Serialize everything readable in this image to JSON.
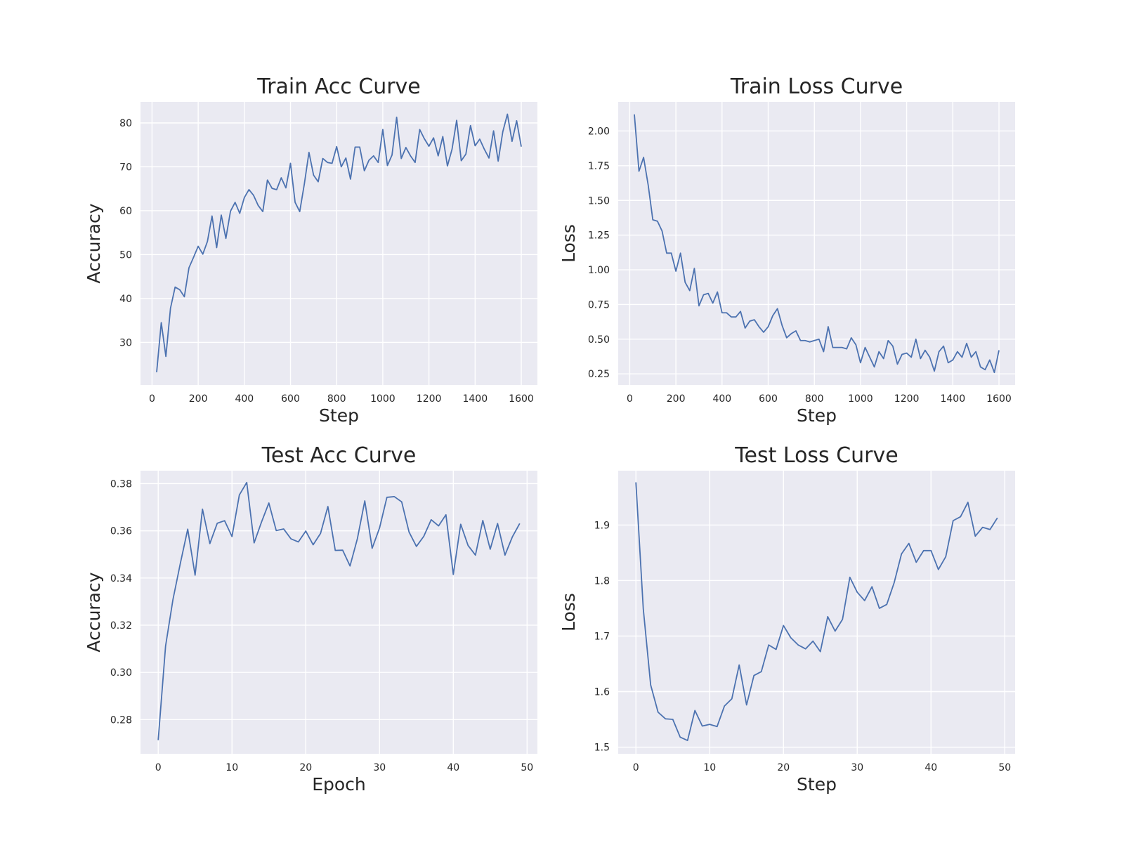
{
  "chart_data": [
    {
      "type": "line",
      "title": "Train Acc Curve",
      "xlabel": "Step",
      "ylabel": "Accuracy",
      "xlim": [
        -50,
        1670
      ],
      "ylim": [
        20.3,
        84.8
      ],
      "xticks": [
        0,
        200,
        400,
        600,
        800,
        1000,
        1200,
        1400,
        1600
      ],
      "yticks": [
        30,
        40,
        50,
        60,
        70,
        80
      ],
      "grid": true,
      "series": [
        {
          "x": [
            20,
            40,
            60,
            80,
            100,
            120,
            140,
            160,
            180,
            200,
            220,
            240,
            260,
            280,
            300,
            320,
            340,
            360,
            380,
            400,
            420,
            440,
            460,
            480,
            500,
            520,
            540,
            560,
            580,
            600,
            620,
            640,
            660,
            680,
            700,
            720,
            740,
            760,
            780,
            800,
            820,
            840,
            860,
            880,
            900,
            920,
            940,
            960,
            980,
            1000,
            1020,
            1040,
            1060,
            1080,
            1100,
            1120,
            1140,
            1160,
            1180,
            1200,
            1220,
            1240,
            1260,
            1280,
            1300,
            1320,
            1340,
            1360,
            1380,
            1400,
            1420,
            1440,
            1460,
            1480,
            1500,
            1520,
            1540,
            1560,
            1580,
            1600
          ],
          "y": [
            23.2,
            34.5,
            26.8,
            37.8,
            42.6,
            42.0,
            40.4,
            47.0,
            49.4,
            51.9,
            50.1,
            53.0,
            58.8,
            51.6,
            59.0,
            53.7,
            59.9,
            61.9,
            59.4,
            63.0,
            64.8,
            63.5,
            61.2,
            59.8,
            67.0,
            65.1,
            64.8,
            67.5,
            65.2,
            70.8,
            61.9,
            59.8,
            66.1,
            73.3,
            68.1,
            66.6,
            71.9,
            71.0,
            70.8,
            74.6,
            70.0,
            72.0,
            67.2,
            74.5,
            74.5,
            69.1,
            71.5,
            72.5,
            71.0,
            78.5,
            70.3,
            72.7,
            81.3,
            71.9,
            74.4,
            72.5,
            71.0,
            78.5,
            76.4,
            74.7,
            76.6,
            72.5,
            76.9,
            70.2,
            74.0,
            80.6,
            71.4,
            72.9,
            79.4,
            74.8,
            76.3,
            74.0,
            72.0,
            78.2,
            71.3,
            78.0,
            82.0,
            75.8,
            80.5,
            74.6
          ]
        }
      ]
    },
    {
      "type": "line",
      "title": "Train Loss Curve",
      "xlabel": "Step",
      "ylabel": "Loss",
      "xlim": [
        -50,
        1670
      ],
      "ylim": [
        0.17,
        2.21
      ],
      "xticks": [
        0,
        200,
        400,
        600,
        800,
        1000,
        1200,
        1400,
        1600
      ],
      "yticks": [
        0.25,
        0.5,
        0.75,
        1.0,
        1.25,
        1.5,
        1.75,
        2.0
      ],
      "ytick_labels": [
        "0.25",
        "0.50",
        "0.75",
        "1.00",
        "1.25",
        "1.50",
        "1.75",
        "2.00"
      ],
      "grid": true,
      "series": [
        {
          "x": [
            20,
            40,
            60,
            80,
            100,
            120,
            140,
            160,
            180,
            200,
            220,
            240,
            260,
            280,
            300,
            320,
            340,
            360,
            380,
            400,
            420,
            440,
            460,
            480,
            500,
            520,
            540,
            560,
            580,
            600,
            620,
            640,
            660,
            680,
            700,
            720,
            740,
            760,
            780,
            800,
            820,
            840,
            860,
            880,
            900,
            920,
            940,
            960,
            980,
            1000,
            1020,
            1040,
            1060,
            1080,
            1100,
            1120,
            1140,
            1160,
            1180,
            1200,
            1220,
            1240,
            1260,
            1280,
            1300,
            1320,
            1340,
            1360,
            1380,
            1400,
            1420,
            1440,
            1460,
            1480,
            1500,
            1520,
            1540,
            1560,
            1580,
            1600
          ],
          "y": [
            2.12,
            1.71,
            1.81,
            1.61,
            1.36,
            1.35,
            1.28,
            1.12,
            1.12,
            0.99,
            1.12,
            0.91,
            0.85,
            1.01,
            0.74,
            0.82,
            0.83,
            0.76,
            0.84,
            0.69,
            0.69,
            0.66,
            0.66,
            0.7,
            0.58,
            0.63,
            0.64,
            0.59,
            0.55,
            0.59,
            0.67,
            0.72,
            0.6,
            0.51,
            0.54,
            0.56,
            0.49,
            0.49,
            0.48,
            0.49,
            0.5,
            0.41,
            0.59,
            0.44,
            0.44,
            0.44,
            0.43,
            0.51,
            0.46,
            0.33,
            0.44,
            0.37,
            0.3,
            0.41,
            0.36,
            0.49,
            0.45,
            0.32,
            0.39,
            0.4,
            0.37,
            0.5,
            0.36,
            0.42,
            0.37,
            0.27,
            0.41,
            0.45,
            0.33,
            0.35,
            0.41,
            0.37,
            0.47,
            0.37,
            0.41,
            0.3,
            0.28,
            0.35,
            0.26,
            0.42
          ]
        }
      ]
    },
    {
      "type": "line",
      "title": "Test Acc Curve",
      "xlabel": "Epoch",
      "ylabel": "Accuracy",
      "xlim": [
        -2.4,
        51.4
      ],
      "ylim": [
        0.2655,
        0.3855
      ],
      "xticks": [
        0,
        10,
        20,
        30,
        40,
        50
      ],
      "yticks": [
        0.28,
        0.3,
        0.32,
        0.34,
        0.36,
        0.38
      ],
      "ytick_labels": [
        "0.28",
        "0.30",
        "0.32",
        "0.34",
        "0.36",
        "0.38"
      ],
      "grid": true,
      "series": [
        {
          "x": [
            0,
            1,
            2,
            3,
            4,
            5,
            6,
            7,
            8,
            9,
            10,
            11,
            12,
            13,
            14,
            15,
            16,
            17,
            18,
            19,
            20,
            21,
            22,
            23,
            24,
            25,
            26,
            27,
            28,
            29,
            30,
            31,
            32,
            33,
            34,
            35,
            36,
            37,
            38,
            39,
            40,
            41,
            42,
            43,
            44,
            45,
            46,
            47,
            48,
            49
          ],
          "y": [
            0.2713,
            0.3112,
            0.3309,
            0.3462,
            0.3607,
            0.3412,
            0.3692,
            0.3546,
            0.3632,
            0.3643,
            0.3576,
            0.3752,
            0.3805,
            0.3549,
            0.3637,
            0.3718,
            0.3601,
            0.3608,
            0.3566,
            0.3553,
            0.3599,
            0.3541,
            0.3589,
            0.3703,
            0.3517,
            0.3518,
            0.3451,
            0.3567,
            0.3727,
            0.3526,
            0.3612,
            0.3742,
            0.3745,
            0.3723,
            0.3595,
            0.3534,
            0.3577,
            0.3647,
            0.3621,
            0.3668,
            0.3415,
            0.3628,
            0.3538,
            0.3497,
            0.3644,
            0.3522,
            0.3631,
            0.3497,
            0.3574,
            0.3631
          ]
        }
      ]
    },
    {
      "type": "line",
      "title": "Test Loss Curve",
      "xlabel": "Step",
      "ylabel": "Loss",
      "xlim": [
        -2.4,
        51.4
      ],
      "ylim": [
        1.488,
        1.998
      ],
      "xticks": [
        0,
        10,
        20,
        30,
        40,
        50
      ],
      "yticks": [
        1.5,
        1.6,
        1.7,
        1.8,
        1.9
      ],
      "ytick_labels": [
        "1.5",
        "1.6",
        "1.7",
        "1.8",
        "1.9"
      ],
      "grid": true,
      "series": [
        {
          "x": [
            0,
            1,
            2,
            3,
            4,
            5,
            6,
            7,
            8,
            9,
            10,
            11,
            12,
            13,
            14,
            15,
            16,
            17,
            18,
            19,
            20,
            21,
            22,
            23,
            24,
            25,
            26,
            27,
            28,
            29,
            30,
            31,
            32,
            33,
            34,
            35,
            36,
            37,
            38,
            39,
            40,
            41,
            42,
            43,
            44,
            45,
            46,
            47,
            48,
            49
          ],
          "y": [
            1.977,
            1.749,
            1.612,
            1.563,
            1.551,
            1.55,
            1.518,
            1.512,
            1.566,
            1.538,
            1.541,
            1.537,
            1.574,
            1.587,
            1.648,
            1.576,
            1.629,
            1.636,
            1.684,
            1.676,
            1.719,
            1.697,
            1.684,
            1.677,
            1.691,
            1.672,
            1.735,
            1.709,
            1.73,
            1.806,
            1.779,
            1.764,
            1.789,
            1.75,
            1.757,
            1.796,
            1.848,
            1.867,
            1.833,
            1.854,
            1.854,
            1.82,
            1.843,
            1.908,
            1.915,
            1.941,
            1.88,
            1.896,
            1.892,
            1.913
          ]
        }
      ]
    }
  ],
  "colors": {
    "figure_background": "#ffffff",
    "axes_background": "#eaeaf2",
    "grid": "#ffffff",
    "line": "#4c72b0",
    "text": "#262626"
  }
}
